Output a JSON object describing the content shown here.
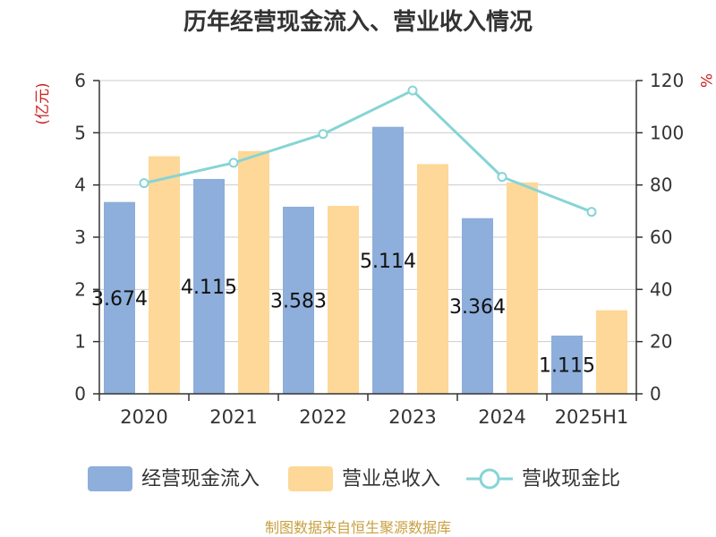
{
  "chart_data": {
    "type": "bar",
    "title": "历年经营现金流入、营业收入情况",
    "categories": [
      "2020",
      "2021",
      "2022",
      "2023",
      "2024",
      "2025H1"
    ],
    "y_left": {
      "unit": "(亿元)",
      "ylim": [
        0,
        6
      ],
      "ticks": [
        "0",
        "1",
        "2",
        "3",
        "4",
        "5",
        "6"
      ]
    },
    "y_right": {
      "unit": "%",
      "ylim": [
        0,
        120
      ],
      "ticks": [
        "0",
        "20",
        "40",
        "60",
        "80",
        "100",
        "120"
      ]
    },
    "series": [
      {
        "name": "经营现金流入",
        "type": "bar",
        "axis": "left",
        "values": [
          3.674,
          4.115,
          3.583,
          5.114,
          3.364,
          1.115
        ],
        "labels": [
          "3.674",
          "4.115",
          "3.583",
          "5.114",
          "3.364",
          "1.115"
        ]
      },
      {
        "name": "营业总收入",
        "type": "bar",
        "axis": "left",
        "values": [
          4.55,
          4.65,
          3.6,
          4.4,
          4.05,
          1.6
        ]
      },
      {
        "name": "营收现金比",
        "type": "line",
        "axis": "right",
        "values": [
          80.7,
          88.5,
          99.5,
          116.2,
          83.1,
          69.7
        ]
      }
    ],
    "grid": true,
    "legend_position": "bottom"
  },
  "colors": {
    "cash_inflow": "#8eaedb",
    "revenue": "#fdd898",
    "ratio_line": "#86d4d6",
    "unit_red": "#cc2222",
    "source_gold": "#c8a040",
    "grid": "#cccccc",
    "axis": "#333333"
  },
  "footer": {
    "source": "制图数据来自恒生聚源数据库"
  }
}
